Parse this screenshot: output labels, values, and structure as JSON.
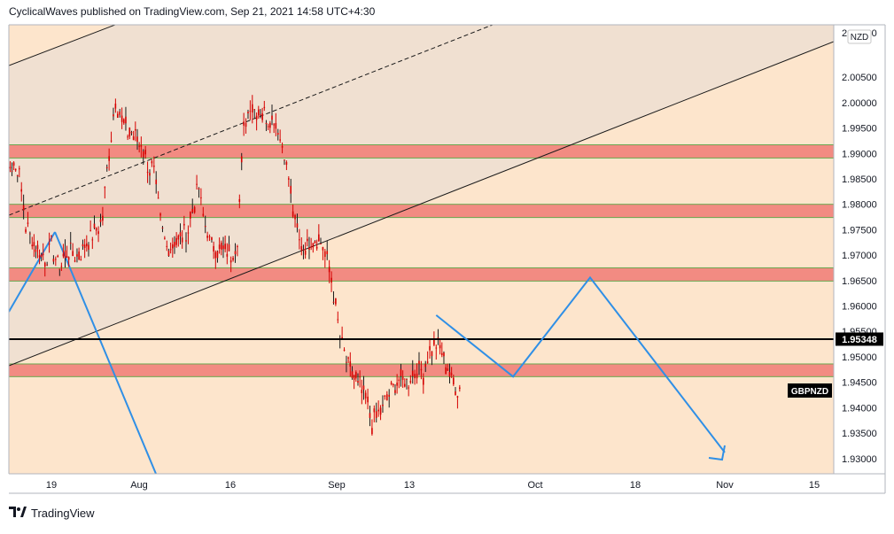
{
  "header": {
    "attribution": "CyclicalWaves published on TradingView.com, Sep 21, 2021 14:58 UTC+4:30"
  },
  "footer": {
    "brand": "TradingView",
    "logo_icon": "tradingview-logo-icon"
  },
  "colors": {
    "background": "#fde5cc",
    "channel_fill": "#f0e0d1",
    "zone_fill": "#f28b82",
    "zone_border": "#6aa84f",
    "candle": "#d50000",
    "forecast": "#2f8fe6",
    "hline": "#000000",
    "trendline": "#1a1a1a"
  },
  "chart_data": {
    "type": "candlestick",
    "symbol": "GBPNZD",
    "currency": "NZD",
    "last_price": "1.95348",
    "ylim": [
      1.927,
      2.0153
    ],
    "y_ticks": [
      "2.00500",
      "2.00000",
      "1.99500",
      "1.99000",
      "1.98500",
      "1.98000",
      "1.97500",
      "1.97000",
      "1.96500",
      "1.96000",
      "1.95500",
      "1.95000",
      "1.94500",
      "1.94000",
      "1.93500",
      "1.93000"
    ],
    "y_top_label": "2.01000",
    "x_ticks": [
      "19",
      "Aug",
      "16",
      "Sep",
      "13",
      "Oct",
      "18",
      "Nov",
      "15"
    ],
    "zones": [
      [
        1.9891,
        1.9917
      ],
      [
        1.9774,
        1.98
      ],
      [
        1.9649,
        1.9675
      ],
      [
        1.9461,
        1.9486
      ]
    ],
    "horizontal_line": 1.95348,
    "forecast_path": [
      [
        "Sep 17",
        1.9582
      ],
      [
        "Sep 29",
        1.9461
      ],
      [
        "Oct 11",
        1.9656
      ],
      [
        "Nov 1",
        1.9312
      ]
    ],
    "price_path": [
      [
        "Jul 12",
        1.99
      ],
      [
        "Jul 14",
        1.986
      ],
      [
        "Jul 15",
        1.976
      ],
      [
        "Jul 16",
        1.973
      ],
      [
        "Jul 18",
        1.969
      ],
      [
        "Jul 19",
        1.972
      ],
      [
        "Jul 20",
        1.968
      ],
      [
        "Jul 22",
        1.971
      ],
      [
        "Jul 23",
        1.97
      ],
      [
        "Jul 26",
        1.975
      ],
      [
        "Jul 27",
        1.978
      ],
      [
        "Jul 28",
        1.99
      ],
      [
        "Jul 29",
        2.001
      ],
      [
        "Jul 30",
        1.996
      ],
      [
        "Aug 2",
        1.992
      ],
      [
        "Aug 3",
        1.988
      ],
      [
        "Aug 4",
        1.986
      ],
      [
        "Aug 5",
        1.976
      ],
      [
        "Aug 6",
        1.972
      ],
      [
        "Aug 9",
        1.974
      ],
      [
        "Aug 10",
        1.979
      ],
      [
        "Aug 11",
        1.983
      ],
      [
        "Aug 12",
        1.976
      ],
      [
        "Aug 13",
        1.972
      ],
      [
        "Aug 16",
        1.97
      ],
      [
        "Aug 17",
        1.973
      ],
      [
        "Aug 18",
        1.995
      ],
      [
        "Aug 19",
        2.0
      ],
      [
        "Aug 20",
        1.999
      ],
      [
        "Aug 23",
        1.996
      ],
      [
        "Aug 24",
        1.992
      ],
      [
        "Aug 25",
        1.985
      ],
      [
        "Aug 26",
        1.976
      ],
      [
        "Aug 27",
        1.972
      ],
      [
        "Aug 30",
        1.973
      ],
      [
        "Aug 31",
        1.969
      ],
      [
        "Sep 1",
        1.963
      ],
      [
        "Sep 2",
        1.953
      ],
      [
        "Sep 3",
        1.949
      ],
      [
        "Sep 6",
        1.942
      ],
      [
        "Sep 7",
        1.937
      ],
      [
        "Sep 8",
        1.939
      ],
      [
        "Sep 9",
        1.941
      ],
      [
        "Sep 10",
        1.944
      ],
      [
        "Sep 13",
        1.946
      ],
      [
        "Sep 14",
        1.948
      ],
      [
        "Sep 15",
        1.947
      ],
      [
        "Sep 16",
        1.951
      ],
      [
        "Sep 17",
        1.953
      ],
      [
        "Sep 20",
        1.944
      ],
      [
        "Sep 21",
        1.944
      ]
    ]
  }
}
